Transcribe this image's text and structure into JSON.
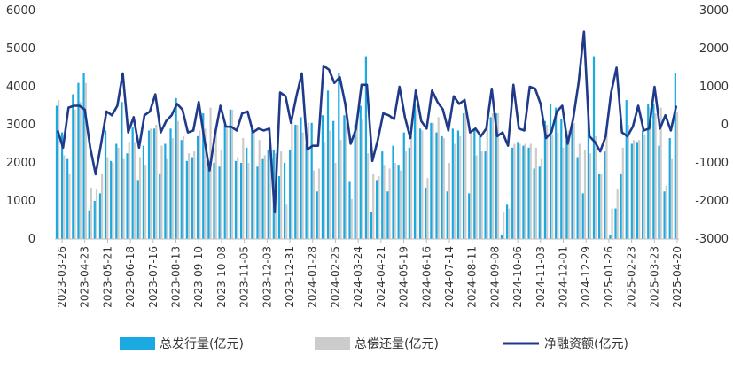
{
  "chart_data": {
    "type": "bar",
    "title": "",
    "xlabel": "",
    "y_left": {
      "lim": [
        0,
        6000
      ],
      "ticks": [
        "0",
        "1000",
        "2000",
        "3000",
        "4000",
        "5000",
        "6000"
      ]
    },
    "y_right": {
      "lim": [
        -3000,
        3000
      ],
      "ticks": [
        "-3000",
        "-2000",
        "-1000",
        "0",
        "1000",
        "2000",
        "3000"
      ]
    },
    "grid": false,
    "legend_position": "bottom",
    "x_tick_labels": [
      "2023-03-26",
      "2023-04-23",
      "2023-05-21",
      "2023-06-18",
      "2023-07-16",
      "2023-08-13",
      "2023-09-10",
      "2023-10-08",
      "2023-11-05",
      "2023-12-03",
      "2023-12-31",
      "2024-01-28",
      "2024-02-25",
      "2024-03-24",
      "2024-04-21",
      "2024-05-19",
      "2024-06-16",
      "2024-07-14",
      "2024-08-11",
      "2024-09-08",
      "2024-10-06",
      "2024-11-03",
      "2024-12-01",
      "2024-12-29",
      "2025-01-26",
      "2025-02-23",
      "2025-03-23",
      "2025-04-20"
    ],
    "series": [
      {
        "name": "总发行量(亿元)",
        "kind": "bar",
        "axis": "left",
        "color": "#1ba9e1",
        "values": [
          3500,
          2800,
          2100,
          3800,
          4100,
          4350,
          750,
          1000,
          1200,
          2850,
          2050,
          2500,
          3600,
          2250,
          2950,
          1550,
          2450,
          2850,
          2900,
          1700,
          2500,
          2900,
          3700,
          2600,
          2050,
          2150,
          2700,
          3300,
          2050,
          2000,
          1900,
          3000,
          3400,
          2050,
          2000,
          2400,
          3000,
          1900,
          2100,
          2350,
          2350,
          1650,
          2000,
          2350,
          3000,
          3200,
          2500,
          3050,
          1250,
          3250,
          3900,
          3100,
          4350,
          3250,
          1500,
          3000,
          3500,
          4800,
          700,
          1550,
          2300,
          1250,
          2450,
          1950,
          2800,
          2400,
          3550,
          2900,
          1350,
          3050,
          2800,
          2700,
          1250,
          2900,
          2850,
          3300,
          1200,
          2850,
          2750,
          2300,
          3200,
          3300,
          100,
          900,
          2400,
          2550,
          2450,
          2400,
          1850,
          1900,
          3100,
          3550,
          3450,
          3150,
          2600,
          3050,
          2150,
          1200,
          3250,
          4800,
          1700,
          2300,
          100,
          800,
          1700,
          3650,
          2500,
          2550,
          2850,
          3550,
          3550,
          2450,
          1250,
          2650,
          4350
        ],
        "series_note_removed": true
      },
      {
        "name": "总偿还量(亿元)",
        "kind": "bar",
        "axis": "left",
        "color": "#cccccc",
        "values": [
          3650,
          2200,
          1700,
          3400,
          3600,
          4100,
          1350,
          1300,
          1700,
          2150,
          2000,
          2400,
          2100,
          2550,
          2550,
          2150,
          1950,
          2900,
          3000,
          2450,
          2100,
          2650,
          3100,
          2700,
          2250,
          2300,
          2850,
          2900,
          3450,
          2850,
          2350,
          2900,
          3400,
          2150,
          2650,
          2000,
          2900,
          2600,
          2200,
          2450,
          2250,
          2300,
          900,
          3250,
          3000,
          2800,
          3050,
          1800,
          1850,
          2550,
          2850,
          2000,
          2600,
          3600,
          1050,
          2950,
          3150,
          2250,
          1700,
          1650,
          1950,
          1850,
          2000,
          1800,
          2300,
          2700,
          3400,
          2850,
          1600,
          3050,
          3200,
          2650,
          2000,
          2500,
          2700,
          3350,
          2800,
          2200,
          2300,
          3300,
          3300,
          3300,
          700,
          800,
          2500,
          2500,
          2500,
          2500,
          2400,
          2100,
          3000,
          2750,
          2800,
          2400,
          2850,
          3050,
          2500,
          2350,
          2250,
          2700,
          1700,
          2900,
          800,
          1300,
          2400,
          3000,
          2600,
          2600,
          2750,
          3450,
          3300,
          3450,
          1400,
          2100,
          3350
        ]
      },
      {
        "name": "净融资额(亿元)",
        "kind": "line",
        "axis": "right",
        "color": "#1f3a8a",
        "values": [
          -150,
          -600,
          450,
          500,
          500,
          400,
          -600,
          -1300,
          -500,
          350,
          250,
          500,
          1350,
          -200,
          200,
          -600,
          250,
          350,
          800,
          -200,
          100,
          250,
          550,
          400,
          -200,
          -150,
          600,
          -350,
          -1200,
          -250,
          500,
          -50,
          -50,
          -150,
          300,
          350,
          -200,
          -100,
          -150,
          -100,
          -2300,
          850,
          750,
          50,
          750,
          1350,
          -650,
          -550,
          -550,
          1550,
          1450,
          1100,
          1250,
          550,
          -500,
          -100,
          1050,
          1050,
          -950,
          -400,
          300,
          250,
          150,
          1000,
          200,
          -350,
          900,
          100,
          -100,
          900,
          600,
          400,
          -150,
          750,
          550,
          650,
          -200,
          -100,
          -300,
          -100,
          950,
          -300,
          -200,
          -550,
          1050,
          -100,
          -150,
          1000,
          950,
          550,
          -350,
          -200,
          350,
          500,
          -500,
          150,
          1100,
          2450,
          -300,
          -450,
          -700,
          -300,
          850,
          1500,
          -200,
          -300,
          -50,
          500,
          -150,
          -100,
          1000,
          -100,
          250,
          -150,
          500
        ]
      }
    ]
  }
}
